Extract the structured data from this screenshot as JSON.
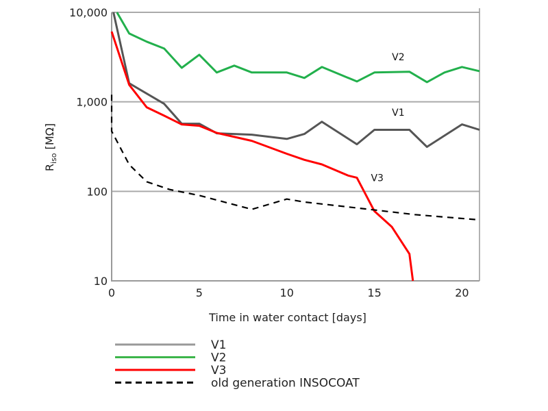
{
  "chart_data": {
    "type": "line",
    "title": "",
    "xlabel": "Time in water contact [days]",
    "ylabel_main": "R",
    "ylabel_sub": "iso",
    "ylabel_unit": " [MΩ]",
    "xlim": [
      0,
      21
    ],
    "ylim": [
      10,
      10000
    ],
    "yscale": "log",
    "grid": "horizontal",
    "legend_placement": "bottom",
    "xticks": [
      "0",
      "5",
      "10",
      "15",
      "20"
    ],
    "xtick_values": [
      0,
      5,
      10,
      15,
      20
    ],
    "yticks": [
      "10",
      "100",
      "1,000",
      "10,000"
    ],
    "ytick_values": [
      10,
      100,
      1000,
      10000
    ],
    "series": [
      {
        "name": "V1",
        "color": "#555555",
        "legend_color": "#999999",
        "dash": false,
        "label": "V1",
        "label_at": [
          16,
          700
        ],
        "x": [
          0.1,
          1,
          3,
          4,
          5,
          6,
          8,
          10,
          11,
          12,
          14,
          15,
          17,
          18,
          20,
          21
        ],
        "y": [
          10000,
          1610,
          950,
          570,
          570,
          445,
          430,
          385,
          437,
          600,
          336,
          487,
          487,
          314,
          560,
          487
        ]
      },
      {
        "name": "V2",
        "color": "#22b04c",
        "legend_color": "#3cb54a",
        "dash": false,
        "label": "V2",
        "label_at": [
          16,
          2900
        ],
        "x": [
          0.3,
          1,
          2,
          3,
          4,
          5,
          6,
          7,
          8,
          10,
          11,
          12,
          14,
          15,
          17,
          18,
          19,
          20,
          21
        ],
        "y": [
          10000,
          5800,
          4700,
          3940,
          2400,
          3360,
          2130,
          2540,
          2130,
          2130,
          1850,
          2450,
          1690,
          2130,
          2170,
          1660,
          2130,
          2450,
          2200
        ]
      },
      {
        "name": "V3",
        "color": "#ff0000",
        "legend_color": "#ff0000",
        "dash": false,
        "label": "V3",
        "label_at": [
          14.8,
          130
        ],
        "x": [
          0,
          1,
          2,
          3,
          4,
          5,
          6,
          8,
          10,
          11,
          12,
          13.5,
          14,
          15,
          16,
          17,
          17.2
        ],
        "y": [
          6100,
          1550,
          870,
          700,
          560,
          540,
          450,
          367,
          263,
          225,
          200,
          150,
          142,
          60,
          40,
          20,
          10
        ]
      },
      {
        "name": "old generation INSOCOAT",
        "color": "#000000",
        "legend_color": "#000000",
        "dash": true,
        "x": [
          0,
          0,
          1,
          2,
          3.3,
          5,
          8,
          10,
          11,
          14.7,
          17.3,
          21
        ],
        "y": [
          1200,
          470,
          199,
          128,
          105,
          90,
          63,
          82,
          76,
          63,
          55,
          48
        ]
      }
    ]
  }
}
